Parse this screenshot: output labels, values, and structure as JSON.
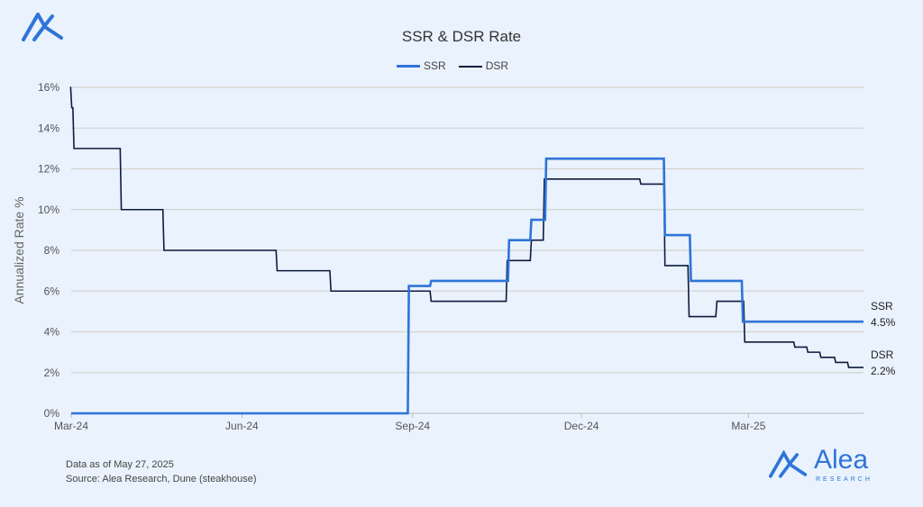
{
  "chart_data": {
    "type": "line",
    "title": "SSR & DSR Rate",
    "xlabel": "",
    "ylabel": "Annualized Rate %",
    "x_units": "days since 2024-03-01",
    "xlim": [
      0,
      427
    ],
    "ylim": [
      0,
      16
    ],
    "yticks": [
      0,
      2,
      4,
      6,
      8,
      10,
      12,
      14,
      16
    ],
    "ytick_labels": [
      "0%",
      "2%",
      "4%",
      "6%",
      "8%",
      "10%",
      "12%",
      "14%",
      "16%"
    ],
    "xticks": [
      0,
      92,
      184,
      275,
      365
    ],
    "xtick_labels": [
      "Mar-24",
      "Jun-24",
      "Sep-24",
      "Dec-24",
      "Mar-25"
    ],
    "grid": true,
    "legend_position": "top-center",
    "series": [
      {
        "name": "SSR",
        "color": "#2f74d8",
        "end_label": "4.5%",
        "steps": [
          [
            0,
            0
          ],
          [
            182,
            6.25
          ],
          [
            194,
            6.5
          ],
          [
            236,
            8.5
          ],
          [
            248,
            9.5
          ],
          [
            256,
            12.5
          ],
          [
            320,
            8.75
          ],
          [
            334,
            6.5
          ],
          [
            362,
            4.5
          ],
          [
            427,
            4.5
          ]
        ]
      },
      {
        "name": "DSR",
        "color": "#0d1b3e",
        "end_label": "2.2%",
        "steps": [
          [
            0,
            16
          ],
          [
            0.3,
            15
          ],
          [
            1.5,
            13
          ],
          [
            27,
            10
          ],
          [
            50,
            8
          ],
          [
            111,
            7
          ],
          [
            140,
            6
          ],
          [
            194,
            5.5
          ],
          [
            235,
            7.5
          ],
          [
            248,
            8.5
          ],
          [
            255,
            11.5
          ],
          [
            307,
            11.25
          ],
          [
            320,
            7.25
          ],
          [
            333,
            4.75
          ],
          [
            348,
            5.5
          ],
          [
            363,
            3.5
          ],
          [
            390,
            3.25
          ],
          [
            397,
            3.0
          ],
          [
            404,
            2.75
          ],
          [
            412,
            2.5
          ],
          [
            419,
            2.25
          ],
          [
            427,
            2.25
          ]
        ]
      }
    ]
  },
  "footer": {
    "line1": "Data as of May 27, 2025",
    "line2": "Source: Alea Research, Dune (steakhouse)"
  },
  "brand": {
    "name": "Alea",
    "sub": "RESEARCH"
  }
}
